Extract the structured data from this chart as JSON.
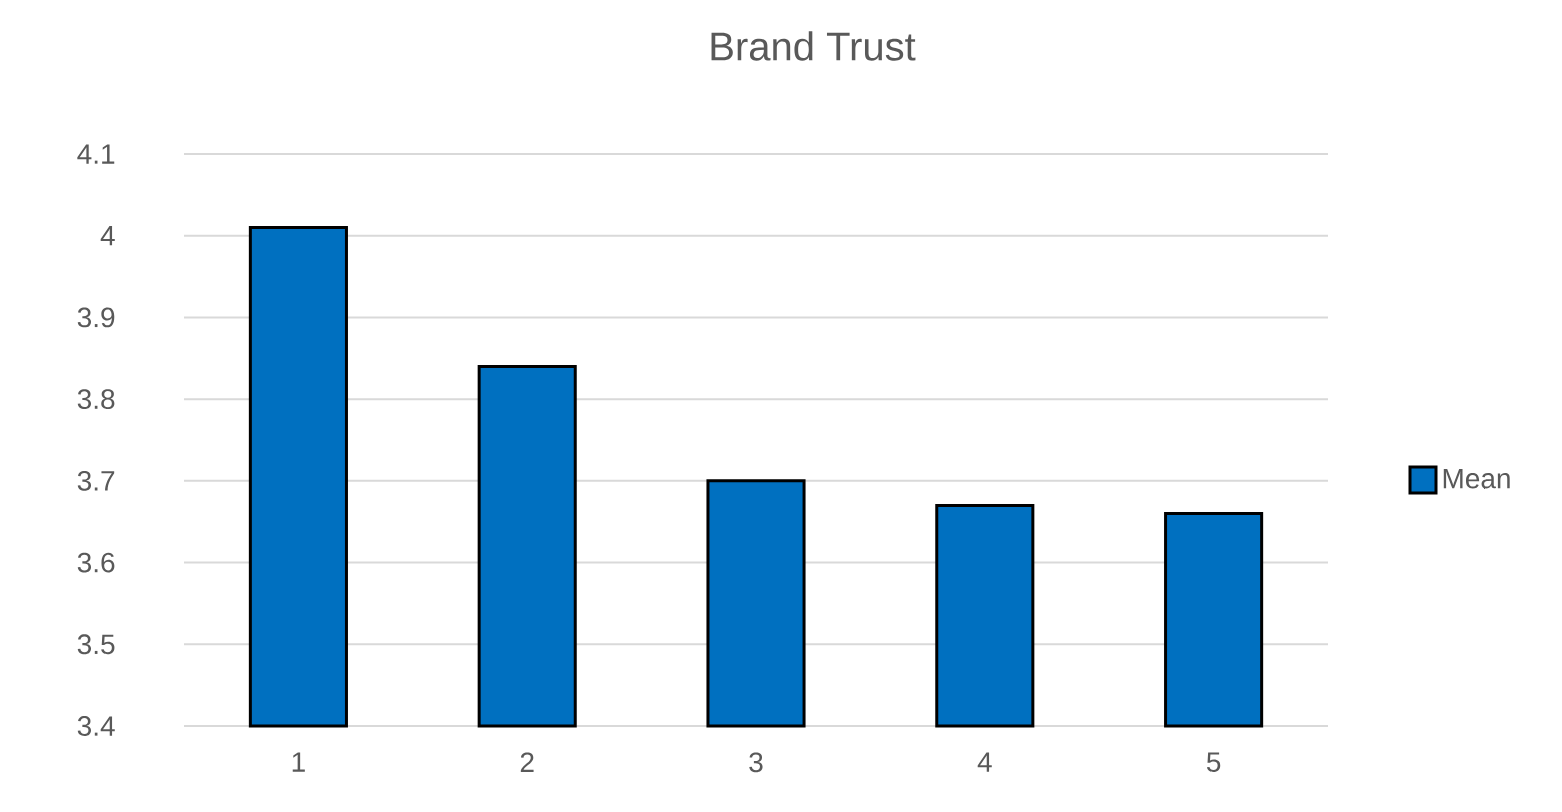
{
  "chart_data": {
    "type": "bar",
    "title": "Brand Trust",
    "categories": [
      "1",
      "2",
      "3",
      "4",
      "5"
    ],
    "series": [
      {
        "name": "Mean",
        "color": "#0070c0",
        "values": [
          4.01,
          3.84,
          3.7,
          3.67,
          3.66
        ]
      }
    ],
    "ylim": [
      3.4,
      4.1
    ],
    "yticks": [
      3.4,
      3.5,
      3.6,
      3.7,
      3.8,
      3.9,
      4,
      4.1
    ],
    "grid": "y",
    "legend": "right"
  }
}
